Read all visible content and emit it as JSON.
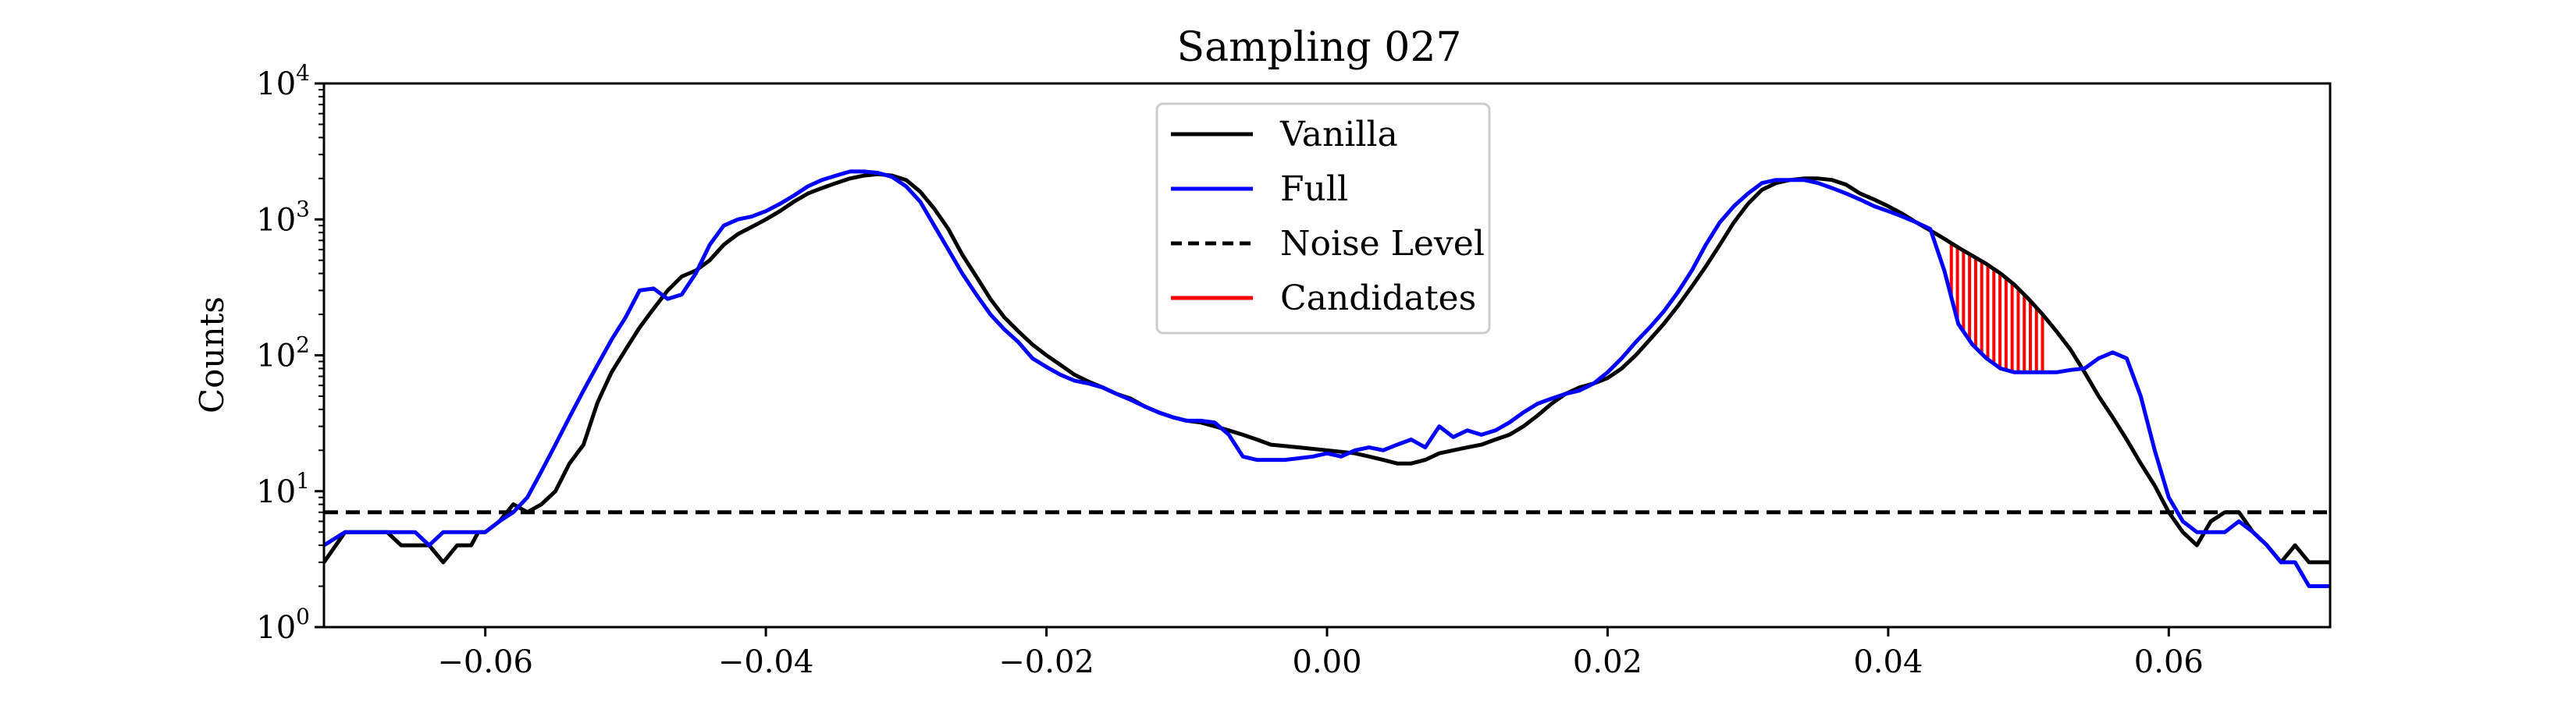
{
  "chart_data": {
    "type": "line",
    "title": "Sampling 027",
    "ylabel": "Counts",
    "xlabel": "",
    "yscale": "log",
    "xlim": [
      -0.0715,
      0.0715
    ],
    "ylim": [
      1,
      10000
    ],
    "x_ticks": [
      {
        "value": -0.06,
        "label": "−0.06"
      },
      {
        "value": -0.04,
        "label": "−0.04"
      },
      {
        "value": -0.02,
        "label": "−0.02"
      },
      {
        "value": 0.0,
        "label": "0.00"
      },
      {
        "value": 0.02,
        "label": "0.02"
      },
      {
        "value": 0.04,
        "label": "0.04"
      },
      {
        "value": 0.06,
        "label": "0.06"
      }
    ],
    "y_ticks": [
      {
        "value": 1,
        "base": "10",
        "exp": "0"
      },
      {
        "value": 10,
        "base": "10",
        "exp": "1"
      },
      {
        "value": 100,
        "base": "10",
        "exp": "2"
      },
      {
        "value": 1000,
        "base": "10",
        "exp": "3"
      },
      {
        "value": 10000,
        "base": "10",
        "exp": "4"
      }
    ],
    "grid": false,
    "legend_position": "upper-center",
    "legend": [
      "Vanilla",
      "Full",
      "Noise Level",
      "Candidates"
    ],
    "series": [
      {
        "name": "Vanilla",
        "color": "#000000",
        "style": "solid",
        "points": [
          [
            -0.0715,
            3
          ],
          [
            -0.07,
            5
          ],
          [
            -0.068,
            5
          ],
          [
            -0.067,
            5
          ],
          [
            -0.066,
            4
          ],
          [
            -0.064,
            4
          ],
          [
            -0.063,
            3
          ],
          [
            -0.062,
            4
          ],
          [
            -0.061,
            4
          ],
          [
            -0.0605,
            5
          ],
          [
            -0.06,
            5
          ],
          [
            -0.059,
            6
          ],
          [
            -0.058,
            8
          ],
          [
            -0.057,
            7
          ],
          [
            -0.056,
            8
          ],
          [
            -0.055,
            10
          ],
          [
            -0.054,
            16
          ],
          [
            -0.053,
            22
          ],
          [
            -0.052,
            45
          ],
          [
            -0.051,
            75
          ],
          [
            -0.05,
            110
          ],
          [
            -0.049,
            160
          ],
          [
            -0.048,
            220
          ],
          [
            -0.047,
            300
          ],
          [
            -0.046,
            380
          ],
          [
            -0.045,
            420
          ],
          [
            -0.044,
            500
          ],
          [
            -0.043,
            650
          ],
          [
            -0.042,
            780
          ],
          [
            -0.041,
            880
          ],
          [
            -0.04,
            1000
          ],
          [
            -0.039,
            1150
          ],
          [
            -0.038,
            1350
          ],
          [
            -0.037,
            1550
          ],
          [
            -0.036,
            1700
          ],
          [
            -0.035,
            1850
          ],
          [
            -0.034,
            2000
          ],
          [
            -0.033,
            2100
          ],
          [
            -0.032,
            2150
          ],
          [
            -0.031,
            2100
          ],
          [
            -0.03,
            1950
          ],
          [
            -0.029,
            1600
          ],
          [
            -0.028,
            1200
          ],
          [
            -0.027,
            850
          ],
          [
            -0.026,
            550
          ],
          [
            -0.025,
            380
          ],
          [
            -0.024,
            260
          ],
          [
            -0.023,
            190
          ],
          [
            -0.022,
            150
          ],
          [
            -0.021,
            120
          ],
          [
            -0.02,
            100
          ],
          [
            -0.019,
            85
          ],
          [
            -0.018,
            72
          ],
          [
            -0.017,
            64
          ],
          [
            -0.016,
            58
          ],
          [
            -0.015,
            52
          ],
          [
            -0.014,
            48
          ],
          [
            -0.013,
            42
          ],
          [
            -0.012,
            38
          ],
          [
            -0.011,
            35
          ],
          [
            -0.01,
            33
          ],
          [
            -0.009,
            32
          ],
          [
            -0.008,
            30
          ],
          [
            -0.007,
            28
          ],
          [
            -0.006,
            26
          ],
          [
            -0.005,
            24
          ],
          [
            -0.004,
            22
          ],
          [
            -0.002,
            21
          ],
          [
            0.0,
            20
          ],
          [
            0.002,
            19
          ],
          [
            0.003,
            18
          ],
          [
            0.004,
            17
          ],
          [
            0.005,
            16
          ],
          [
            0.006,
            16
          ],
          [
            0.007,
            17
          ],
          [
            0.008,
            19
          ],
          [
            0.009,
            20
          ],
          [
            0.01,
            21
          ],
          [
            0.011,
            22
          ],
          [
            0.012,
            24
          ],
          [
            0.013,
            26
          ],
          [
            0.014,
            30
          ],
          [
            0.015,
            36
          ],
          [
            0.016,
            44
          ],
          [
            0.017,
            52
          ],
          [
            0.018,
            58
          ],
          [
            0.019,
            62
          ],
          [
            0.02,
            68
          ],
          [
            0.021,
            80
          ],
          [
            0.022,
            100
          ],
          [
            0.023,
            130
          ],
          [
            0.024,
            170
          ],
          [
            0.025,
            230
          ],
          [
            0.026,
            320
          ],
          [
            0.027,
            450
          ],
          [
            0.028,
            650
          ],
          [
            0.029,
            950
          ],
          [
            0.03,
            1300
          ],
          [
            0.031,
            1650
          ],
          [
            0.032,
            1850
          ],
          [
            0.033,
            1950
          ],
          [
            0.034,
            2000
          ],
          [
            0.035,
            2000
          ],
          [
            0.036,
            1950
          ],
          [
            0.037,
            1800
          ],
          [
            0.038,
            1550
          ],
          [
            0.039,
            1400
          ],
          [
            0.04,
            1250
          ],
          [
            0.041,
            1100
          ],
          [
            0.042,
            950
          ],
          [
            0.043,
            830
          ],
          [
            0.044,
            720
          ],
          [
            0.045,
            620
          ],
          [
            0.046,
            540
          ],
          [
            0.047,
            470
          ],
          [
            0.048,
            400
          ],
          [
            0.049,
            330
          ],
          [
            0.05,
            260
          ],
          [
            0.051,
            200
          ],
          [
            0.052,
            150
          ],
          [
            0.053,
            110
          ],
          [
            0.054,
            75
          ],
          [
            0.055,
            50
          ],
          [
            0.056,
            35
          ],
          [
            0.057,
            24
          ],
          [
            0.058,
            16
          ],
          [
            0.059,
            11
          ],
          [
            0.06,
            7
          ],
          [
            0.061,
            5
          ],
          [
            0.062,
            4
          ],
          [
            0.063,
            6
          ],
          [
            0.064,
            7
          ],
          [
            0.065,
            7
          ],
          [
            0.066,
            5
          ],
          [
            0.067,
            4
          ],
          [
            0.068,
            3
          ],
          [
            0.069,
            4
          ],
          [
            0.07,
            3
          ],
          [
            0.0715,
            3
          ]
        ]
      },
      {
        "name": "Full",
        "color": "#0000ff",
        "style": "solid",
        "points": [
          [
            -0.0715,
            4
          ],
          [
            -0.07,
            5
          ],
          [
            -0.068,
            5
          ],
          [
            -0.066,
            5
          ],
          [
            -0.065,
            5
          ],
          [
            -0.064,
            4
          ],
          [
            -0.063,
            5
          ],
          [
            -0.061,
            5
          ],
          [
            -0.06,
            5
          ],
          [
            -0.059,
            6
          ],
          [
            -0.058,
            7
          ],
          [
            -0.057,
            9
          ],
          [
            -0.056,
            14
          ],
          [
            -0.055,
            22
          ],
          [
            -0.054,
            35
          ],
          [
            -0.053,
            55
          ],
          [
            -0.052,
            85
          ],
          [
            -0.051,
            130
          ],
          [
            -0.05,
            190
          ],
          [
            -0.049,
            300
          ],
          [
            -0.048,
            310
          ],
          [
            -0.047,
            260
          ],
          [
            -0.046,
            280
          ],
          [
            -0.045,
            400
          ],
          [
            -0.044,
            650
          ],
          [
            -0.043,
            900
          ],
          [
            -0.042,
            1000
          ],
          [
            -0.041,
            1050
          ],
          [
            -0.04,
            1150
          ],
          [
            -0.039,
            1300
          ],
          [
            -0.038,
            1500
          ],
          [
            -0.037,
            1750
          ],
          [
            -0.036,
            1950
          ],
          [
            -0.035,
            2100
          ],
          [
            -0.034,
            2250
          ],
          [
            -0.033,
            2250
          ],
          [
            -0.032,
            2200
          ],
          [
            -0.031,
            2050
          ],
          [
            -0.03,
            1750
          ],
          [
            -0.029,
            1350
          ],
          [
            -0.028,
            900
          ],
          [
            -0.027,
            600
          ],
          [
            -0.026,
            400
          ],
          [
            -0.025,
            280
          ],
          [
            -0.024,
            200
          ],
          [
            -0.023,
            155
          ],
          [
            -0.022,
            125
          ],
          [
            -0.021,
            95
          ],
          [
            -0.02,
            82
          ],
          [
            -0.019,
            72
          ],
          [
            -0.018,
            65
          ],
          [
            -0.017,
            62
          ],
          [
            -0.016,
            58
          ],
          [
            -0.015,
            52
          ],
          [
            -0.014,
            47
          ],
          [
            -0.013,
            42
          ],
          [
            -0.012,
            38
          ],
          [
            -0.011,
            35
          ],
          [
            -0.01,
            33
          ],
          [
            -0.009,
            33
          ],
          [
            -0.008,
            32
          ],
          [
            -0.007,
            26
          ],
          [
            -0.006,
            18
          ],
          [
            -0.005,
            17
          ],
          [
            -0.003,
            17
          ],
          [
            -0.001,
            18
          ],
          [
            0.0,
            19
          ],
          [
            0.001,
            18
          ],
          [
            0.002,
            20
          ],
          [
            0.003,
            21
          ],
          [
            0.004,
            20
          ],
          [
            0.005,
            22
          ],
          [
            0.006,
            24
          ],
          [
            0.007,
            21
          ],
          [
            0.008,
            30
          ],
          [
            0.009,
            25
          ],
          [
            0.01,
            28
          ],
          [
            0.011,
            26
          ],
          [
            0.012,
            28
          ],
          [
            0.013,
            32
          ],
          [
            0.014,
            38
          ],
          [
            0.015,
            44
          ],
          [
            0.016,
            48
          ],
          [
            0.017,
            52
          ],
          [
            0.018,
            55
          ],
          [
            0.019,
            62
          ],
          [
            0.02,
            75
          ],
          [
            0.021,
            95
          ],
          [
            0.022,
            125
          ],
          [
            0.023,
            160
          ],
          [
            0.024,
            210
          ],
          [
            0.025,
            290
          ],
          [
            0.026,
            420
          ],
          [
            0.027,
            650
          ],
          [
            0.028,
            950
          ],
          [
            0.029,
            1250
          ],
          [
            0.03,
            1550
          ],
          [
            0.031,
            1850
          ],
          [
            0.032,
            1950
          ],
          [
            0.033,
            1950
          ],
          [
            0.034,
            1950
          ],
          [
            0.035,
            1850
          ],
          [
            0.036,
            1700
          ],
          [
            0.037,
            1550
          ],
          [
            0.038,
            1400
          ],
          [
            0.039,
            1250
          ],
          [
            0.04,
            1150
          ],
          [
            0.041,
            1050
          ],
          [
            0.042,
            950
          ],
          [
            0.043,
            850
          ],
          [
            0.044,
            420
          ],
          [
            0.045,
            170
          ],
          [
            0.046,
            120
          ],
          [
            0.047,
            95
          ],
          [
            0.048,
            80
          ],
          [
            0.049,
            75
          ],
          [
            0.05,
            75
          ],
          [
            0.051,
            75
          ],
          [
            0.052,
            75
          ],
          [
            0.053,
            78
          ],
          [
            0.054,
            80
          ],
          [
            0.055,
            95
          ],
          [
            0.056,
            105
          ],
          [
            0.057,
            95
          ],
          [
            0.058,
            50
          ],
          [
            0.059,
            20
          ],
          [
            0.06,
            9
          ],
          [
            0.061,
            6
          ],
          [
            0.062,
            5
          ],
          [
            0.063,
            5
          ],
          [
            0.064,
            5
          ],
          [
            0.065,
            6
          ],
          [
            0.066,
            5
          ],
          [
            0.067,
            4
          ],
          [
            0.068,
            3
          ],
          [
            0.069,
            3
          ],
          [
            0.07,
            2
          ],
          [
            0.0715,
            2
          ]
        ]
      },
      {
        "name": "Noise Level",
        "color": "#000000",
        "style": "dashed",
        "value": 7
      }
    ],
    "candidates": {
      "name": "Candidates",
      "color": "#ff0000",
      "x_range": [
        0.0445,
        0.051
      ],
      "line_count": 16
    }
  }
}
